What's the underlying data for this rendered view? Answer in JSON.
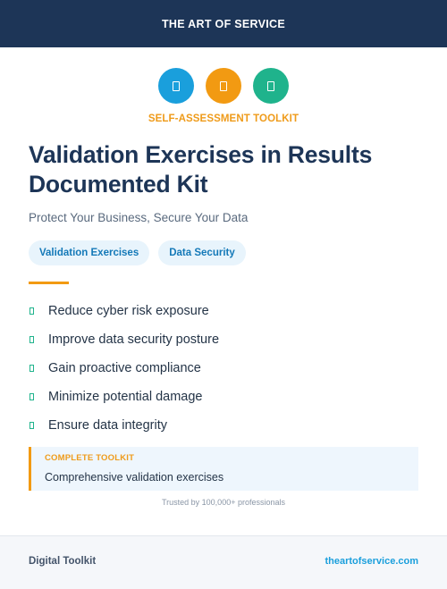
{
  "header": {
    "brand": "THE ART OF SERVICE"
  },
  "icons": [
    {
      "name": "doc-icon-blue",
      "color": "#1a9fdc"
    },
    {
      "name": "doc-icon-orange",
      "color": "#f29a12"
    },
    {
      "name": "doc-icon-green",
      "color": "#1fb38c"
    }
  ],
  "kicker": "SELF-ASSESSMENT TOOLKIT",
  "title": "Validation Exercises in Results Documented Kit",
  "subtitle": "Protect Your Business, Secure Your Data",
  "tags": [
    "Validation Exercises",
    "Data Security"
  ],
  "features": [
    "Reduce cyber risk exposure",
    "Improve data security posture",
    "Gain proactive compliance",
    "Minimize potential damage",
    "Ensure data integrity"
  ],
  "callout": {
    "label": "COMPLETE TOOLKIT",
    "text": "Comprehensive validation exercises"
  },
  "trust": "Trusted by 100,000+ professionals",
  "footer": {
    "left": "Digital Toolkit",
    "right": "theartofservice.com"
  },
  "colors": {
    "navy": "#1d3557",
    "accent_orange": "#f29a12",
    "accent_blue": "#1a9fdc",
    "accent_green": "#1fb38c"
  }
}
